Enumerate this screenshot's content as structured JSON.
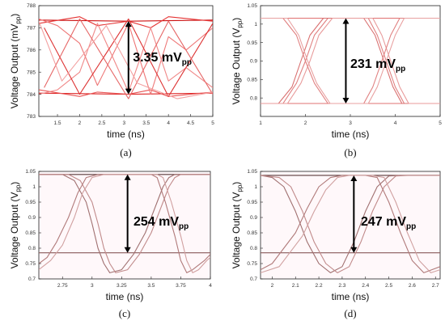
{
  "chart_data": [
    {
      "id": "a",
      "type": "line",
      "caption": "(a)",
      "xlabel": "time (ns)",
      "ylabel": "Voltage Output",
      "ylabel_unit": "(mV",
      "ylabel_unit_sub": "pp",
      "ylabel_unit_close": ")",
      "xlim": [
        1.08,
        5.0
      ],
      "ylim": [
        783.0,
        788.0
      ],
      "xticks": [
        "1.5",
        "2",
        "2.5",
        "3",
        "3.5",
        "4",
        "4.5",
        "5"
      ],
      "xtick_values": [
        1.5,
        2,
        2.5,
        3,
        3.5,
        4,
        4.5,
        5
      ],
      "yticks": [
        "783",
        "784",
        "785",
        "786",
        "787",
        "788"
      ],
      "ytick_values": [
        783,
        784,
        785,
        786,
        787,
        788
      ],
      "annotation": {
        "value": "3.35 mV",
        "sub": "pp",
        "arrow_x": 3.1,
        "arrow_from": 784.0,
        "arrow_to": 787.3,
        "text_x": 3.2,
        "text_y": 785.7
      },
      "series": [
        {
          "values_x": [
            1.08,
            3.1,
            5.0
          ],
          "values_y": [
            787.35,
            787.3,
            787.35
          ]
        },
        {
          "values_x": [
            1.08,
            3.1,
            5.0
          ],
          "values_y": [
            784.05,
            784.0,
            784.05
          ]
        },
        {
          "values_x": [
            1.08,
            2.0,
            2.4,
            3.1,
            3.6,
            4.0,
            5.0
          ],
          "values_y": [
            787.2,
            787.5,
            787.1,
            787.3,
            787.0,
            787.5,
            787.3
          ]
        },
        {
          "values_x": [
            1.08,
            2.0,
            2.4,
            3.1,
            3.6,
            4.0,
            5.0
          ],
          "values_y": [
            784.2,
            783.9,
            784.1,
            784.0,
            784.2,
            783.9,
            784.1
          ]
        },
        {
          "values_x": [
            1.08,
            1.5,
            2.0,
            2.4,
            3.1,
            3.6,
            4.0,
            4.4,
            5.0
          ],
          "values_y": [
            787.4,
            787.1,
            786.3,
            784.4,
            787.2,
            784.0,
            786.6,
            786.0,
            787.0
          ]
        },
        {
          "values_x": [
            1.08,
            1.5,
            2.0,
            2.4,
            3.1,
            3.6,
            4.0,
            4.4,
            5.0
          ],
          "values_y": [
            784.0,
            784.2,
            785.0,
            787.2,
            784.1,
            787.0,
            784.6,
            785.2,
            784.3
          ]
        },
        {
          "values_x": [
            1.2,
            2.0,
            3.1,
            4.0,
            5.0
          ],
          "values_y": [
            787.0,
            784.0,
            787.4,
            783.9,
            787.2
          ]
        },
        {
          "values_x": [
            1.2,
            2.0,
            3.1,
            4.0,
            5.0
          ],
          "values_y": [
            784.3,
            787.4,
            783.8,
            787.3,
            784.0
          ]
        },
        {
          "values_x": [
            1.08,
            1.6,
            2.6,
            3.3,
            4.2,
            5.0
          ],
          "values_y": [
            787.3,
            784.6,
            787.1,
            784.5,
            783.8,
            784.1
          ]
        }
      ]
    },
    {
      "id": "b",
      "type": "line",
      "caption": "(b)",
      "xlabel": "time (ns)",
      "ylabel": "Voltage Output",
      "ylabel_unit": "(V",
      "ylabel_unit_sub": "pp",
      "ylabel_unit_close": ")",
      "xlim": [
        1.0,
        5.0
      ],
      "ylim": [
        0.75,
        1.05
      ],
      "xticks": [
        "1",
        "2",
        "3",
        "4",
        "5"
      ],
      "xtick_values": [
        1,
        2,
        3,
        4,
        5
      ],
      "yticks": [
        "0.8",
        "0.85",
        "0.9",
        "0.95",
        "1",
        "1.05"
      ],
      "ytick_values": [
        0.8,
        0.85,
        0.9,
        0.95,
        1.0,
        1.05
      ],
      "annotation": {
        "value": "231 mV",
        "sub": "pp",
        "arrow_x": 2.9,
        "arrow_from": 0.785,
        "arrow_to": 1.016,
        "text_x": 3.0,
        "text_y": 0.895
      },
      "series": [
        {
          "values_x": [
            1.0,
            5.0
          ],
          "values_y": [
            1.016,
            1.016
          ]
        },
        {
          "values_x": [
            1.0,
            5.0
          ],
          "values_y": [
            0.785,
            0.785
          ]
        },
        {
          "values_x": [
            1.0,
            1.5,
            1.8,
            2.0,
            2.2,
            2.5,
            3.4,
            3.6,
            3.8,
            4.0,
            4.2,
            5.0
          ],
          "values_y": [
            0.785,
            0.785,
            0.84,
            0.9,
            0.97,
            1.016,
            1.016,
            0.97,
            0.9,
            0.83,
            0.785,
            0.785
          ]
        },
        {
          "values_x": [
            1.0,
            1.4,
            1.7,
            1.9,
            2.1,
            2.4,
            3.3,
            3.55,
            3.75,
            3.95,
            4.15,
            5.0
          ],
          "values_y": [
            0.785,
            0.785,
            0.83,
            0.9,
            0.97,
            1.016,
            1.016,
            0.97,
            0.9,
            0.83,
            0.785,
            0.785
          ]
        },
        {
          "values_x": [
            1.0,
            1.6,
            1.9,
            2.1,
            2.3,
            2.6,
            3.5,
            3.7,
            3.9,
            4.1,
            4.3,
            5.0
          ],
          "values_y": [
            0.785,
            0.785,
            0.84,
            0.9,
            0.97,
            1.016,
            1.016,
            0.97,
            0.9,
            0.83,
            0.785,
            0.785
          ]
        },
        {
          "values_x": [
            1.0,
            1.5,
            1.8,
            2.0,
            2.2,
            2.5,
            3.3,
            3.5,
            3.7,
            3.9,
            4.1,
            5.0
          ],
          "values_y": [
            1.016,
            1.016,
            0.97,
            0.9,
            0.84,
            0.785,
            0.785,
            0.83,
            0.9,
            0.97,
            1.016,
            1.016
          ]
        },
        {
          "values_x": [
            1.0,
            1.6,
            1.85,
            2.05,
            2.25,
            2.55,
            3.4,
            3.6,
            3.8,
            4.0,
            4.2,
            5.0
          ],
          "values_y": [
            1.016,
            1.016,
            0.97,
            0.9,
            0.84,
            0.785,
            0.785,
            0.83,
            0.9,
            0.97,
            1.016,
            1.016
          ]
        }
      ]
    },
    {
      "id": "c",
      "type": "line",
      "caption": "(c)",
      "xlabel": "time (ns)",
      "ylabel": "Voltage Output",
      "ylabel_unit": "(V",
      "ylabel_unit_sub": "pp",
      "ylabel_unit_close": ")",
      "xlim": [
        2.55,
        4.0
      ],
      "ylim": [
        0.7,
        1.05
      ],
      "xticks": [
        "2.75",
        "3",
        "3.25",
        "3.5",
        "3.75",
        "4"
      ],
      "xtick_values": [
        2.75,
        3.0,
        3.25,
        3.5,
        3.75,
        4.0
      ],
      "yticks": [
        "0.7",
        "0.75",
        "0.8",
        "0.85",
        "0.9",
        "0.95",
        "1",
        "1.05"
      ],
      "ytick_values": [
        0.7,
        0.75,
        0.8,
        0.85,
        0.9,
        0.95,
        1.0,
        1.05
      ],
      "annotation": {
        "value": "254 mV",
        "sub": "pp",
        "arrow_x": 3.3,
        "arrow_from": 0.785,
        "arrow_to": 1.04,
        "text_x": 3.35,
        "text_y": 0.89
      },
      "series": [
        {
          "values_x": [
            2.55,
            4.0
          ],
          "values_y": [
            1.04,
            1.04
          ]
        },
        {
          "values_x": [
            2.55,
            4.0
          ],
          "values_y": [
            0.785,
            0.785
          ]
        },
        {
          "values_x": [
            2.55,
            2.75,
            2.85,
            2.95,
            3.0,
            3.05,
            3.1,
            3.15,
            3.25,
            3.35,
            3.45,
            3.55,
            3.6,
            3.65,
            3.7,
            3.75,
            3.85,
            4.0
          ],
          "values_y": [
            1.04,
            1.04,
            1.02,
            0.95,
            0.88,
            0.8,
            0.75,
            0.72,
            0.73,
            0.78,
            0.85,
            0.95,
            1.0,
            1.03,
            1.04,
            1.04,
            1.04,
            1.04
          ]
        },
        {
          "values_x": [
            2.55,
            2.8,
            2.9,
            3.0,
            3.05,
            3.1,
            3.15,
            3.2,
            3.3,
            3.4,
            3.5,
            3.6,
            3.65,
            3.7,
            3.75,
            3.8,
            3.9,
            4.0
          ],
          "values_y": [
            1.04,
            1.04,
            1.02,
            0.95,
            0.88,
            0.8,
            0.75,
            0.72,
            0.73,
            0.78,
            0.85,
            0.95,
            1.0,
            1.03,
            1.04,
            1.04,
            1.04,
            1.04
          ]
        },
        {
          "values_x": [
            2.55,
            2.62,
            2.7,
            2.8,
            2.88,
            2.95,
            3.05,
            3.1,
            3.5,
            3.55,
            3.62,
            3.7,
            3.75,
            3.8,
            3.85,
            3.95,
            4.0
          ],
          "values_y": [
            0.75,
            0.77,
            0.82,
            0.9,
            0.98,
            1.03,
            1.04,
            1.04,
            1.04,
            1.03,
            0.95,
            0.84,
            0.76,
            0.72,
            0.73,
            0.76,
            0.78
          ]
        },
        {
          "values_x": [
            2.55,
            2.65,
            2.75,
            2.85,
            2.92,
            3.0,
            3.1,
            3.15,
            3.55,
            3.6,
            3.67,
            3.75,
            3.8,
            3.85,
            3.9,
            3.97,
            4.0
          ],
          "values_y": [
            0.73,
            0.76,
            0.81,
            0.9,
            0.98,
            1.03,
            1.04,
            1.04,
            1.04,
            1.03,
            0.95,
            0.84,
            0.76,
            0.72,
            0.73,
            0.76,
            0.77
          ]
        }
      ]
    },
    {
      "id": "d",
      "type": "line",
      "caption": "(d)",
      "xlabel": "time (ns)",
      "ylabel": "Voltage Output",
      "ylabel_unit": "(V",
      "ylabel_unit_sub": "pp",
      "ylabel_unit_close": ")",
      "xlim": [
        1.95,
        2.72
      ],
      "ylim": [
        0.7,
        1.05
      ],
      "xticks": [
        "2",
        "2.1",
        "2.2",
        "2.3",
        "2.4",
        "2.5",
        "2.6",
        "2.7"
      ],
      "xtick_values": [
        2.0,
        2.1,
        2.2,
        2.3,
        2.4,
        2.5,
        2.6,
        2.7
      ],
      "yticks": [
        "0.7",
        "0.75",
        "0.8",
        "0.85",
        "0.9",
        "0.95",
        "1",
        "1.05"
      ],
      "ytick_values": [
        0.7,
        0.75,
        0.8,
        0.85,
        0.9,
        0.95,
        1.0,
        1.05
      ],
      "annotation": {
        "value": "247 mV",
        "sub": "pp",
        "arrow_x": 2.35,
        "arrow_from": 0.785,
        "arrow_to": 1.037,
        "text_x": 2.38,
        "text_y": 0.89
      },
      "series": [
        {
          "values_x": [
            1.95,
            2.72
          ],
          "values_y": [
            1.037,
            1.037
          ]
        },
        {
          "values_x": [
            1.95,
            2.72
          ],
          "values_y": [
            0.785,
            0.785
          ]
        },
        {
          "values_x": [
            1.95,
            2.0,
            2.05,
            2.1,
            2.15,
            2.2,
            2.25,
            2.3,
            2.35,
            2.4,
            2.45,
            2.5,
            2.55,
            2.6,
            2.65,
            2.72
          ],
          "values_y": [
            1.037,
            1.03,
            1.0,
            0.92,
            0.82,
            0.75,
            0.72,
            0.74,
            0.82,
            0.92,
            1.0,
            1.035,
            1.037,
            1.037,
            1.037,
            1.037
          ]
        },
        {
          "values_x": [
            1.95,
            2.03,
            2.08,
            2.13,
            2.18,
            2.23,
            2.28,
            2.33,
            2.38,
            2.43,
            2.48,
            2.53,
            2.58,
            2.72
          ],
          "values_y": [
            1.037,
            1.03,
            1.0,
            0.92,
            0.82,
            0.75,
            0.72,
            0.74,
            0.82,
            0.92,
            1.0,
            1.035,
            1.037,
            1.037
          ]
        },
        {
          "values_x": [
            1.95,
            2.0,
            2.1,
            2.15,
            2.2,
            2.25,
            2.3,
            2.4,
            2.45,
            2.5,
            2.55,
            2.6,
            2.65,
            2.72
          ],
          "values_y": [
            0.73,
            0.75,
            0.85,
            0.93,
            1.0,
            1.03,
            1.037,
            1.037,
            1.03,
            0.95,
            0.85,
            0.76,
            0.72,
            0.74
          ]
        },
        {
          "values_x": [
            1.95,
            2.03,
            2.13,
            2.18,
            2.23,
            2.28,
            2.33,
            2.43,
            2.48,
            2.53,
            2.58,
            2.63,
            2.68,
            2.72
          ],
          "values_y": [
            0.72,
            0.74,
            0.84,
            0.92,
            0.99,
            1.03,
            1.037,
            1.037,
            1.03,
            0.95,
            0.85,
            0.76,
            0.72,
            0.73
          ]
        }
      ]
    }
  ]
}
